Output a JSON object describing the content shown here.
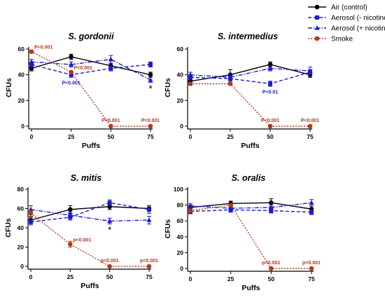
{
  "legend": {
    "entries": [
      {
        "label": "Air (control)",
        "color": "#000000",
        "marker": "circle",
        "dash": "solid"
      },
      {
        "label": "Aerosol (- nicotine)",
        "color": "#1a1ad1",
        "marker": "square",
        "dash": "dashed"
      },
      {
        "label": "Aerosol (+ nicotine)",
        "color": "#1a1ad1",
        "marker": "triangle",
        "dash": "dashdot"
      },
      {
        "label": "Smoke",
        "color": "#b5361e",
        "marker": "circle",
        "dash": "dotted"
      }
    ]
  },
  "chart_data": [
    {
      "type": "line",
      "title": "S. gordonii",
      "xlabel": "Puffs",
      "ylabel": "CFUs",
      "x": [
        0,
        25,
        50,
        75
      ],
      "ylim": [
        0,
        60
      ],
      "yticks": [
        0,
        20,
        40,
        60
      ],
      "series": [
        {
          "name": "Air (control)",
          "values": [
            45,
            54,
            47,
            40
          ],
          "errors": [
            2,
            2,
            2,
            2
          ]
        },
        {
          "name": "Aerosol (- nicotine)",
          "values": [
            48,
            40,
            45,
            48
          ],
          "errors": [
            2,
            2,
            2,
            2
          ]
        },
        {
          "name": "Aerosol (+ nicotine)",
          "values": [
            50,
            48,
            52,
            36
          ],
          "errors": [
            2,
            2,
            3,
            2
          ]
        },
        {
          "name": "Smoke",
          "values": [
            58,
            42,
            0,
            0
          ],
          "errors": [
            1,
            1,
            0,
            0
          ]
        }
      ],
      "annotations": [
        {
          "text": "P<0.001",
          "x": 0,
          "y": 58,
          "color": "#b5361e"
        },
        {
          "text": "P<0.001",
          "x": 25,
          "y": 42,
          "color": "#b5361e"
        },
        {
          "text": "P<0.001",
          "x": 25,
          "y": 40,
          "color": "#1a1ad1"
        },
        {
          "text": "P<0.001",
          "x": 50,
          "y": 0,
          "color": "#b5361e"
        },
        {
          "text": "P<0.001",
          "x": 75,
          "y": 0,
          "color": "#b5361e"
        },
        {
          "text": "a",
          "x": 75,
          "y": 36,
          "color": "#000000"
        }
      ]
    },
    {
      "type": "line",
      "title": "S. intermedius",
      "xlabel": "Puffs",
      "ylabel": "CFUs",
      "x": [
        0,
        25,
        50,
        75
      ],
      "ylim": [
        0,
        60
      ],
      "yticks": [
        0,
        20,
        40,
        60
      ],
      "series": [
        {
          "name": "Air (control)",
          "values": [
            35,
            40,
            48,
            40
          ],
          "errors": [
            2,
            4,
            2,
            2
          ]
        },
        {
          "name": "Aerosol (- nicotine)",
          "values": [
            38,
            37,
            33,
            42
          ],
          "errors": [
            2,
            2,
            2,
            2
          ]
        },
        {
          "name": "Aerosol (+ nicotine)",
          "values": [
            40,
            38,
            45,
            43
          ],
          "errors": [
            2,
            2,
            2,
            3
          ]
        },
        {
          "name": "Smoke",
          "values": [
            33,
            33,
            0,
            0
          ],
          "errors": [
            1,
            1,
            0,
            0
          ]
        }
      ],
      "annotations": [
        {
          "text": "P<0.01",
          "x": 50,
          "y": 33,
          "color": "#1a1ad1"
        },
        {
          "text": "P<0.001",
          "x": 50,
          "y": 0,
          "color": "#b5361e"
        },
        {
          "text": "P<0.001",
          "x": 75,
          "y": 0,
          "color": "#b5361e"
        }
      ]
    },
    {
      "type": "line",
      "title": "S. mitis",
      "xlabel": "Puffs",
      "ylabel": "CFUs",
      "x": [
        0,
        25,
        50,
        75
      ],
      "ylim": [
        0,
        80
      ],
      "yticks": [
        0,
        20,
        40,
        60,
        80
      ],
      "series": [
        {
          "name": "Air (control)",
          "values": [
            48,
            59,
            62,
            60
          ],
          "errors": [
            3,
            4,
            3,
            3
          ]
        },
        {
          "name": "Aerosol (- nicotine)",
          "values": [
            46,
            51,
            66,
            59
          ],
          "errors": [
            3,
            3,
            3,
            4
          ]
        },
        {
          "name": "Aerosol (+ nicotine)",
          "values": [
            59,
            53,
            47,
            48
          ],
          "errors": [
            4,
            3,
            3,
            4
          ]
        },
        {
          "name": "Smoke",
          "values": [
            55,
            23,
            0,
            0
          ],
          "errors": [
            3,
            3,
            0,
            0
          ]
        }
      ],
      "annotations": [
        {
          "text": "a",
          "x": 50,
          "y": 47,
          "color": "#000000"
        },
        {
          "text": "p<0.001",
          "x": 25,
          "y": 23,
          "color": "#b5361e"
        },
        {
          "text": "p<0.001",
          "x": 50,
          "y": 0,
          "color": "#b5361e"
        },
        {
          "text": "p<0.001",
          "x": 75,
          "y": 0,
          "color": "#b5361e"
        }
      ]
    },
    {
      "type": "line",
      "title": "S. oralis",
      "xlabel": "Puffs",
      "ylabel": "CFUs",
      "x": [
        0,
        25,
        50,
        75
      ],
      "ylim": [
        0,
        100
      ],
      "yticks": [
        0,
        20,
        40,
        60,
        80,
        100
      ],
      "series": [
        {
          "name": "Air (control)",
          "values": [
            77,
            82,
            83,
            75
          ],
          "errors": [
            3,
            3,
            5,
            4
          ]
        },
        {
          "name": "Aerosol (- nicotine)",
          "values": [
            72,
            74,
            73,
            71
          ],
          "errors": [
            3,
            3,
            3,
            3
          ]
        },
        {
          "name": "Aerosol (+ nicotine)",
          "values": [
            79,
            76,
            77,
            83
          ],
          "errors": [
            3,
            3,
            3,
            4
          ]
        },
        {
          "name": "Smoke",
          "values": [
            73,
            80,
            0,
            0
          ],
          "errors": [
            2,
            2,
            0,
            0
          ]
        }
      ],
      "annotations": [
        {
          "text": "p<0.001",
          "x": 50,
          "y": 0,
          "color": "#b5361e"
        },
        {
          "text": "p<0.001",
          "x": 75,
          "y": 0,
          "color": "#b5361e"
        }
      ]
    }
  ]
}
